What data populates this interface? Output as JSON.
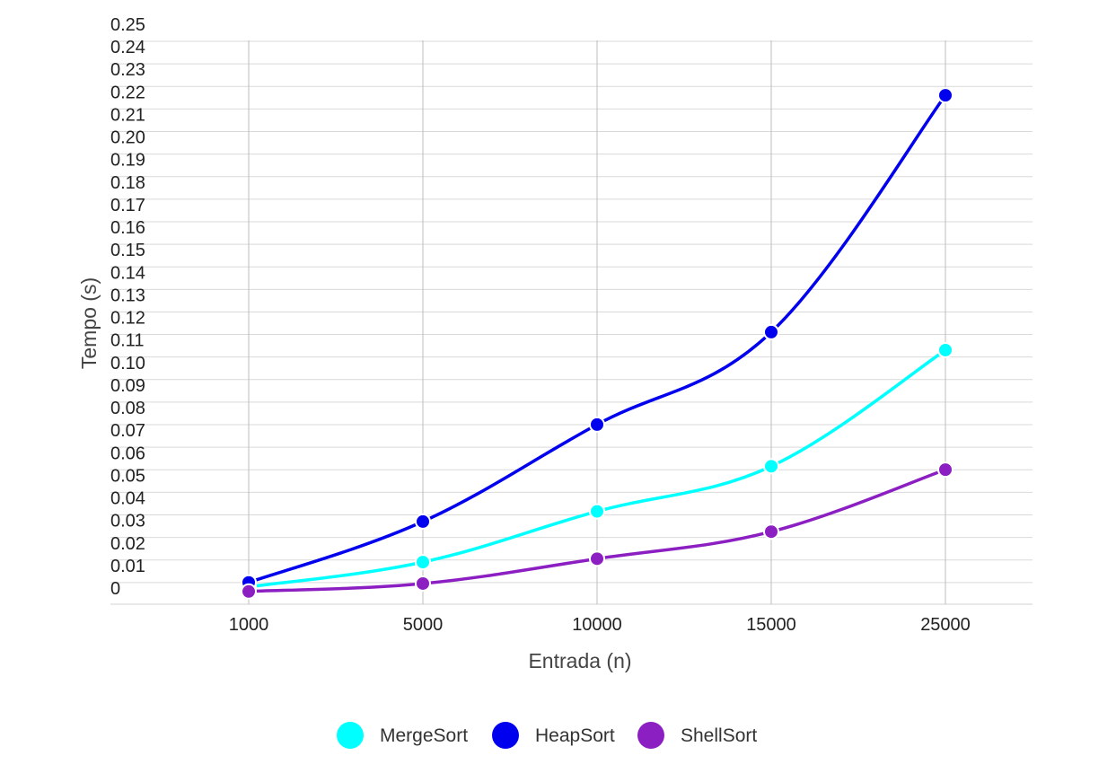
{
  "chart_data": {
    "type": "line",
    "categories": [
      "1000",
      "5000",
      "10000",
      "15000",
      "25000"
    ],
    "y_ticks": [
      "0",
      "0.01",
      "0.02",
      "0.03",
      "0.04",
      "0.05",
      "0.06",
      "0.07",
      "0.08",
      "0.09",
      "0.10",
      "0.11",
      "0.12",
      "0.13",
      "0.14",
      "0.15",
      "0.16",
      "0.17",
      "0.18",
      "0.19",
      "0.20",
      "0.21",
      "0.22",
      "0.23",
      "0.24",
      "0.25"
    ],
    "ylim": [
      0,
      0.25
    ],
    "xlabel": "Entrada (n)",
    "ylabel": "Tempo (s)",
    "grid": true,
    "legend_position": "bottom",
    "series": [
      {
        "name": "MergeSort",
        "color": "#00FFFF",
        "values": [
          0.0005,
          0.0115,
          0.034,
          0.054,
          0.1055
        ]
      },
      {
        "name": "HeapSort",
        "color": "#0000EE",
        "values": [
          0.0025,
          0.0295,
          0.0725,
          0.1135,
          0.2185
        ]
      },
      {
        "name": "ShellSort",
        "color": "#8B1FC2",
        "values": [
          -0.0015,
          0.002,
          0.013,
          0.025,
          0.0525
        ]
      }
    ]
  }
}
